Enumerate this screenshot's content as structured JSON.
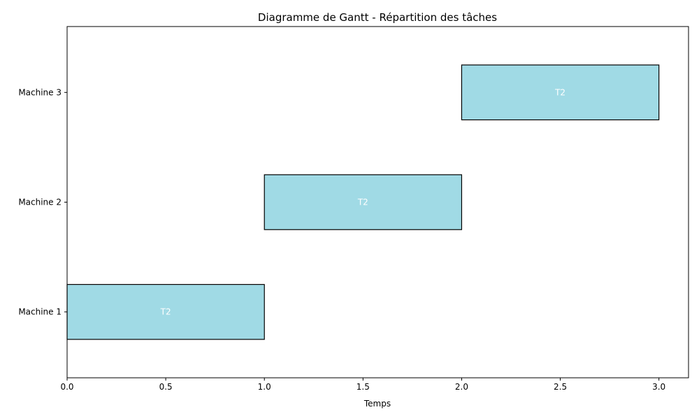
{
  "chart_data": {
    "type": "gantt",
    "title": "Diagramme de Gantt - Répartition des tâches",
    "xlabel": "Temps",
    "ylabel": "",
    "xlim": [
      0,
      3.15
    ],
    "xticks": [
      "0.0",
      "0.5",
      "1.0",
      "1.5",
      "2.0",
      "2.5",
      "3.0"
    ],
    "categories": [
      "Machine 1",
      "Machine 2",
      "Machine 3"
    ],
    "tasks": [
      {
        "label": "T2",
        "machine": "Machine 1",
        "start": 0,
        "end": 1
      },
      {
        "label": "T2",
        "machine": "Machine 2",
        "start": 1,
        "end": 2
      },
      {
        "label": "T2",
        "machine": "Machine 3",
        "start": 2,
        "end": 3
      }
    ],
    "bar_color": "#a0dae5",
    "bar_edge_color": "#000000",
    "label_color": "#ffffff",
    "grid": false,
    "legend": "none"
  }
}
